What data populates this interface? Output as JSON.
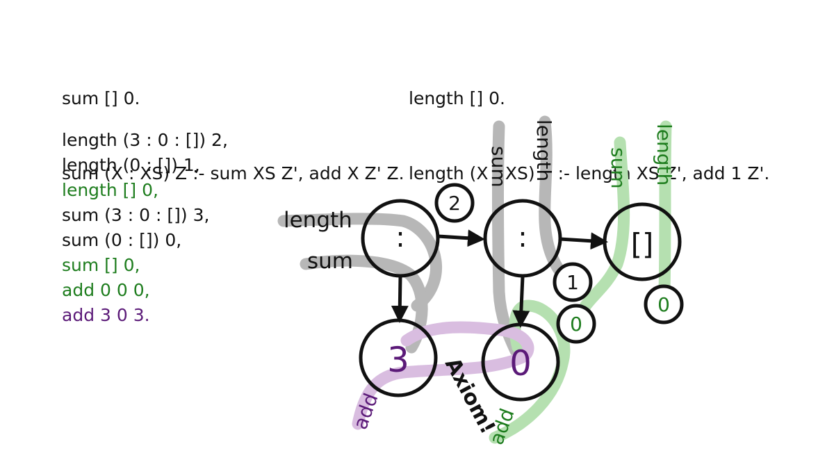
{
  "colors": {
    "black": "#111111",
    "green": "#1e7d1e",
    "purple": "#5b1a78",
    "gray_strand": "#b7b7b7",
    "green_strand": "#b5e0b0",
    "purple_strand": "#d9bde0"
  },
  "rules": {
    "sum": [
      "sum [] 0.",
      "sum (X : XS) Z :- sum XS Z', add X Z' Z."
    ],
    "length": [
      "length [] 0.",
      "length (X : XS) Z :- length XS Z', add 1 Z'."
    ]
  },
  "facts": [
    {
      "text": "length (3 : 0 : []) 2,",
      "color": "black"
    },
    {
      "text": "length (0 : []) 1,",
      "color": "black"
    },
    {
      "text": "length [] 0,",
      "color": "green"
    },
    {
      "text": "sum (3 : 0 : []) 3,",
      "color": "black"
    },
    {
      "text": "sum (0 : []) 0,",
      "color": "black"
    },
    {
      "text": "sum [] 0,",
      "color": "green"
    },
    {
      "text": "add 0 0 0,",
      "color": "green"
    },
    {
      "text": "add 3 0 3.",
      "color": "purple"
    }
  ],
  "diagram": {
    "nodes": {
      "cons1": ":",
      "cons2": ":",
      "nil": "[]",
      "head1": "3",
      "head2": "0"
    },
    "result_badges": {
      "length_outer": "2",
      "length_inner": "1",
      "sum_inner": "0",
      "length_nil": "0"
    },
    "strand_labels": {
      "length_outer": "length",
      "sum_outer": "sum",
      "sum_inner": "sum",
      "length_inner": "length",
      "sum_nil": "sum",
      "length_nil": "length",
      "add_purple": "add",
      "add_green": "add",
      "axiom": "Axiom!"
    }
  }
}
